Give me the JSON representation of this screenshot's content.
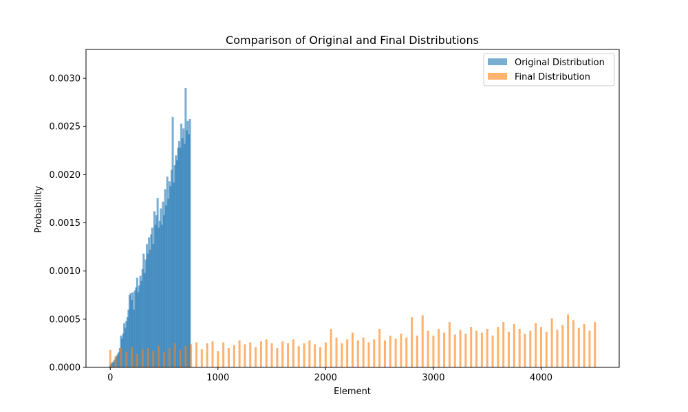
{
  "chart_data": {
    "type": "bar",
    "title": "Comparison of Original and Final Distributions",
    "xlabel": "Element",
    "ylabel": "Probability",
    "xlim": [
      -225,
      4725
    ],
    "ylim": [
      0,
      0.0033
    ],
    "x_ticks": [
      0,
      1000,
      2000,
      3000,
      4000
    ],
    "x_tick_labels": [
      "0",
      "1000",
      "2000",
      "3000",
      "4000"
    ],
    "y_ticks": [
      0,
      0.0005,
      0.001,
      0.0015,
      0.002,
      0.0025,
      0.003
    ],
    "y_tick_labels": [
      "0.0000",
      "0.0005",
      "0.0010",
      "0.0015",
      "0.0020",
      "0.0025",
      "0.0030"
    ],
    "grid": false,
    "legend_position": "top-right",
    "bar_alpha": 0.6,
    "series": [
      {
        "name": "Original Distribution",
        "color": "#1f77b4",
        "points": [
          [
            0,
            2e-05
          ],
          [
            10,
            4e-05
          ],
          [
            20,
            5e-05
          ],
          [
            30,
            6e-05
          ],
          [
            40,
            8e-05
          ],
          [
            50,
            0.0001
          ],
          [
            60,
            0.00012
          ],
          [
            70,
            0.00014
          ],
          [
            80,
            0.00016
          ],
          [
            90,
            0.0002
          ],
          [
            100,
            0.00033
          ],
          [
            110,
            0.0003
          ],
          [
            120,
            0.00035
          ],
          [
            130,
            0.00046
          ],
          [
            140,
            0.00041
          ],
          [
            150,
            0.00048
          ],
          [
            160,
            0.00052
          ],
          [
            170,
            0.0006
          ],
          [
            180,
            0.00075
          ],
          [
            190,
            0.00077
          ],
          [
            200,
            0.0007
          ],
          [
            210,
            0.00078
          ],
          [
            220,
            0.0006
          ],
          [
            230,
            0.0008
          ],
          [
            240,
            0.00083
          ],
          [
            250,
            0.00093
          ],
          [
            260,
            0.00078
          ],
          [
            270,
            0.00085
          ],
          [
            280,
            0.00095
          ],
          [
            290,
            0.0009
          ],
          [
            300,
            0.00102
          ],
          [
            310,
            0.00118
          ],
          [
            320,
            0.00098
          ],
          [
            330,
            0.00112
          ],
          [
            340,
            0.00128
          ],
          [
            350,
            0.00118
          ],
          [
            360,
            0.00135
          ],
          [
            370,
            0.00122
          ],
          [
            380,
            0.00138
          ],
          [
            390,
            0.00145
          ],
          [
            400,
            0.00128
          ],
          [
            410,
            0.00162
          ],
          [
            420,
            0.00148
          ],
          [
            430,
            0.00158
          ],
          [
            440,
            0.00176
          ],
          [
            450,
            0.00145
          ],
          [
            460,
            0.00152
          ],
          [
            470,
            0.00165
          ],
          [
            480,
            0.00148
          ],
          [
            490,
            0.00172
          ],
          [
            500,
            0.00158
          ],
          [
            510,
            0.00185
          ],
          [
            520,
            0.00168
          ],
          [
            530,
            0.00198
          ],
          [
            540,
            0.00175
          ],
          [
            550,
            0.00193
          ],
          [
            560,
            0.00188
          ],
          [
            570,
            0.00205
          ],
          [
            580,
            0.0026
          ],
          [
            590,
            0.00192
          ],
          [
            600,
            0.0021
          ],
          [
            610,
            0.0022
          ],
          [
            620,
            0.00215
          ],
          [
            630,
            0.00228
          ],
          [
            640,
            0.00235
          ],
          [
            650,
            0.00228
          ],
          [
            660,
            0.00253
          ],
          [
            670,
            0.00238
          ],
          [
            680,
            0.00248
          ],
          [
            690,
            0.00232
          ],
          [
            700,
            0.0029
          ],
          [
            710,
            0.00246
          ],
          [
            720,
            0.00256
          ],
          [
            730,
            0.00242
          ],
          [
            740,
            0.00258
          ]
        ]
      },
      {
        "name": "Final Distribution",
        "color": "#ff7f0e",
        "points": [
          [
            0,
            0.00018
          ],
          [
            50,
            0.00012
          ],
          [
            100,
            0.0002
          ],
          [
            150,
            0.00016
          ],
          [
            200,
            0.00021
          ],
          [
            250,
            0.00014
          ],
          [
            300,
            0.00019
          ],
          [
            350,
            0.0002
          ],
          [
            400,
            0.00017
          ],
          [
            450,
            0.00022
          ],
          [
            500,
            0.00016
          ],
          [
            550,
            0.0002
          ],
          [
            600,
            0.00025
          ],
          [
            650,
            0.00018
          ],
          [
            700,
            0.00022
          ],
          [
            750,
            0.00024
          ],
          [
            800,
            0.00026
          ],
          [
            850,
            0.00019
          ],
          [
            900,
            0.00025
          ],
          [
            950,
            0.00027
          ],
          [
            1000,
            0.00017
          ],
          [
            1050,
            0.00026
          ],
          [
            1100,
            0.0002
          ],
          [
            1150,
            0.00023
          ],
          [
            1200,
            0.00028
          ],
          [
            1250,
            0.00024
          ],
          [
            1300,
            0.00026
          ],
          [
            1350,
            0.00021
          ],
          [
            1400,
            0.00027
          ],
          [
            1450,
            0.00029
          ],
          [
            1500,
            0.00025
          ],
          [
            1550,
            0.0002
          ],
          [
            1600,
            0.00027
          ],
          [
            1650,
            0.00025
          ],
          [
            1700,
            0.00029
          ],
          [
            1750,
            0.00022
          ],
          [
            1800,
            0.00025
          ],
          [
            1850,
            0.00028
          ],
          [
            1900,
            0.00024
          ],
          [
            1950,
            0.00021
          ],
          [
            2000,
            0.00026
          ],
          [
            2050,
            0.0004
          ],
          [
            2100,
            0.00031
          ],
          [
            2150,
            0.00025
          ],
          [
            2200,
            0.00029
          ],
          [
            2250,
            0.00036
          ],
          [
            2300,
            0.00028
          ],
          [
            2350,
            0.00031
          ],
          [
            2400,
            0.00026
          ],
          [
            2450,
            0.00029
          ],
          [
            2500,
            0.0004
          ],
          [
            2550,
            0.00028
          ],
          [
            2600,
            0.00033
          ],
          [
            2650,
            0.0003
          ],
          [
            2700,
            0.00035
          ],
          [
            2750,
            0.00031
          ],
          [
            2800,
            0.00052
          ],
          [
            2850,
            0.00033
          ],
          [
            2900,
            0.00054
          ],
          [
            2950,
            0.00038
          ],
          [
            3000,
            0.00033
          ],
          [
            3050,
            0.0004
          ],
          [
            3100,
            0.00036
          ],
          [
            3150,
            0.00047
          ],
          [
            3200,
            0.00034
          ],
          [
            3250,
            0.00039
          ],
          [
            3300,
            0.00035
          ],
          [
            3350,
            0.00042
          ],
          [
            3400,
            0.00038
          ],
          [
            3450,
            0.00036
          ],
          [
            3500,
            0.0004
          ],
          [
            3550,
            0.00033
          ],
          [
            3600,
            0.00042
          ],
          [
            3650,
            0.00047
          ],
          [
            3700,
            0.00037
          ],
          [
            3750,
            0.00045
          ],
          [
            3800,
            0.0004
          ],
          [
            3850,
            0.00035
          ],
          [
            3900,
            0.00038
          ],
          [
            3950,
            0.00046
          ],
          [
            4000,
            0.00042
          ],
          [
            4050,
            0.00037
          ],
          [
            4100,
            0.00051
          ],
          [
            4150,
            0.00039
          ],
          [
            4200,
            0.00044
          ],
          [
            4250,
            0.00055
          ],
          [
            4300,
            0.00049
          ],
          [
            4350,
            0.00041
          ],
          [
            4400,
            0.00045
          ],
          [
            4450,
            0.00038
          ],
          [
            4500,
            0.00047
          ]
        ]
      }
    ]
  }
}
